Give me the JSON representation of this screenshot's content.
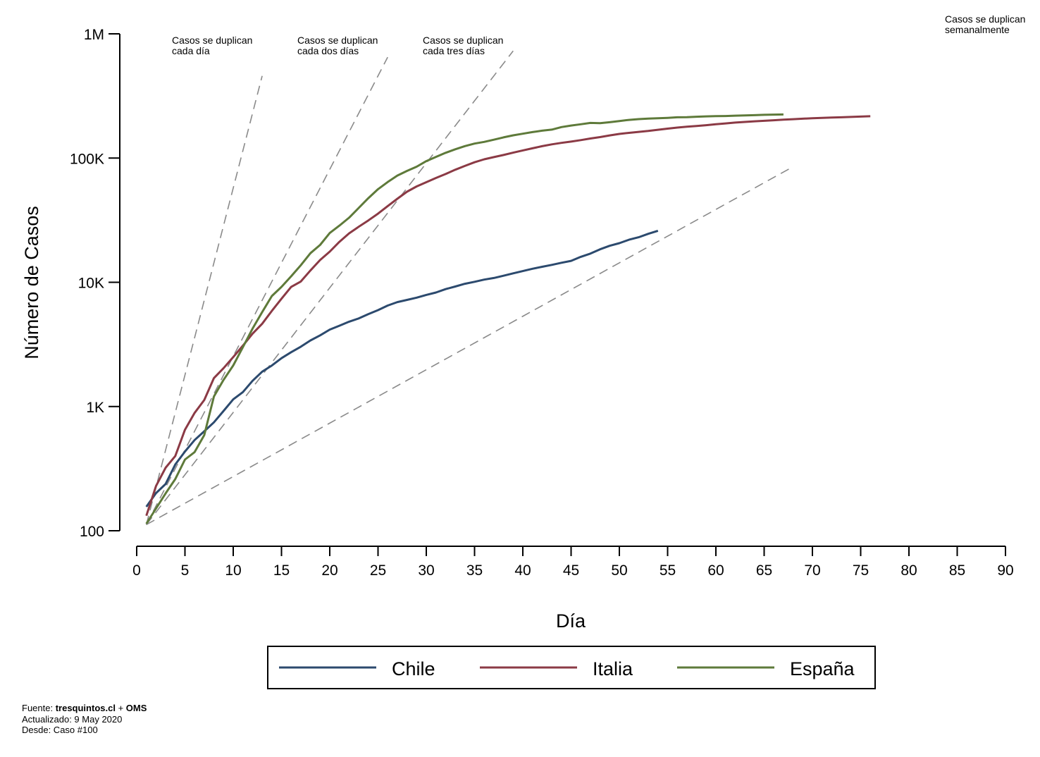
{
  "chart_data": {
    "type": "line",
    "xlabel": "Día",
    "ylabel": "Número de Casos",
    "xlim": [
      0,
      90
    ],
    "ylim": [
      100,
      1000000
    ],
    "yscale": "log",
    "grid": false,
    "legend_position": "bottom",
    "x_ticks": [
      0,
      5,
      10,
      15,
      20,
      25,
      30,
      35,
      40,
      45,
      50,
      55,
      60,
      65,
      70,
      75,
      80,
      85,
      90
    ],
    "y_ticks": [
      {
        "value": 100,
        "label": "100"
      },
      {
        "value": 1000,
        "label": "1K"
      },
      {
        "value": 10000,
        "label": "10K"
      },
      {
        "value": 100000,
        "label": "100K"
      },
      {
        "value": 1000000,
        "label": "1M"
      }
    ],
    "series": [
      {
        "name": "Chile",
        "color": "#2c4a6e",
        "points": [
          [
            1,
            156
          ],
          [
            2,
            201
          ],
          [
            3,
            238
          ],
          [
            4,
            342
          ],
          [
            5,
            434
          ],
          [
            6,
            537
          ],
          [
            7,
            632
          ],
          [
            8,
            746
          ],
          [
            9,
            922
          ],
          [
            10,
            1142
          ],
          [
            11,
            1306
          ],
          [
            12,
            1610
          ],
          [
            13,
            1909
          ],
          [
            14,
            2139
          ],
          [
            15,
            2449
          ],
          [
            16,
            2738
          ],
          [
            17,
            3031
          ],
          [
            18,
            3404
          ],
          [
            19,
            3737
          ],
          [
            20,
            4161
          ],
          [
            21,
            4471
          ],
          [
            22,
            4815
          ],
          [
            23,
            5116
          ],
          [
            24,
            5546
          ],
          [
            25,
            5972
          ],
          [
            26,
            6501
          ],
          [
            27,
            6927
          ],
          [
            28,
            7213
          ],
          [
            29,
            7525
          ],
          [
            30,
            7917
          ],
          [
            31,
            8273
          ],
          [
            32,
            8807
          ],
          [
            33,
            9252
          ],
          [
            34,
            9730
          ],
          [
            35,
            10088
          ],
          [
            36,
            10507
          ],
          [
            37,
            10832
          ],
          [
            38,
            11296
          ],
          [
            39,
            11812
          ],
          [
            40,
            12306
          ],
          [
            41,
            12858
          ],
          [
            42,
            13331
          ],
          [
            43,
            13813
          ],
          [
            44,
            14365
          ],
          [
            45,
            14885
          ],
          [
            46,
            16023
          ],
          [
            47,
            17008
          ],
          [
            48,
            18435
          ],
          [
            49,
            19663
          ],
          [
            50,
            20643
          ],
          [
            51,
            22016
          ],
          [
            52,
            23048
          ],
          [
            53,
            24581
          ],
          [
            54,
            25972
          ]
        ]
      },
      {
        "name": "Italia",
        "color": "#8b3a45",
        "points": [
          [
            1,
            132
          ],
          [
            2,
            229
          ],
          [
            3,
            322
          ],
          [
            4,
            400
          ],
          [
            5,
            650
          ],
          [
            6,
            888
          ],
          [
            7,
            1128
          ],
          [
            8,
            1694
          ],
          [
            9,
            2036
          ],
          [
            10,
            2502
          ],
          [
            11,
            3089
          ],
          [
            12,
            3858
          ],
          [
            13,
            4636
          ],
          [
            14,
            5883
          ],
          [
            15,
            7375
          ],
          [
            16,
            9172
          ],
          [
            17,
            10149
          ],
          [
            18,
            12462
          ],
          [
            19,
            15113
          ],
          [
            20,
            17660
          ],
          [
            21,
            21157
          ],
          [
            22,
            24747
          ],
          [
            23,
            27980
          ],
          [
            24,
            31506
          ],
          [
            25,
            35713
          ],
          [
            26,
            41035
          ],
          [
            27,
            47021
          ],
          [
            28,
            53578
          ],
          [
            29,
            59138
          ],
          [
            30,
            63927
          ],
          [
            31,
            69176
          ],
          [
            32,
            74386
          ],
          [
            33,
            80589
          ],
          [
            34,
            86498
          ],
          [
            35,
            92472
          ],
          [
            36,
            97689
          ],
          [
            37,
            101739
          ],
          [
            38,
            105792
          ],
          [
            39,
            110574
          ],
          [
            40,
            115242
          ],
          [
            41,
            119827
          ],
          [
            42,
            124632
          ],
          [
            43,
            128948
          ],
          [
            44,
            132547
          ],
          [
            45,
            135586
          ],
          [
            46,
            139422
          ],
          [
            47,
            143626
          ],
          [
            48,
            147577
          ],
          [
            49,
            152271
          ],
          [
            50,
            156363
          ],
          [
            51,
            159516
          ],
          [
            52,
            162488
          ],
          [
            53,
            165155
          ],
          [
            54,
            168941
          ],
          [
            55,
            172434
          ],
          [
            56,
            175925
          ],
          [
            57,
            178972
          ],
          [
            58,
            181228
          ],
          [
            59,
            183957
          ],
          [
            60,
            187327
          ],
          [
            61,
            189973
          ],
          [
            62,
            192994
          ],
          [
            63,
            195351
          ],
          [
            64,
            197675
          ],
          [
            65,
            199414
          ],
          [
            66,
            201505
          ],
          [
            67,
            203591
          ],
          [
            68,
            205463
          ],
          [
            69,
            207428
          ],
          [
            70,
            209328
          ],
          [
            71,
            210717
          ],
          [
            72,
            211938
          ],
          [
            73,
            213013
          ],
          [
            74,
            214457
          ],
          [
            75,
            215858
          ],
          [
            76,
            217185
          ]
        ]
      },
      {
        "name": "España",
        "color": "#5e7a3a",
        "points": [
          [
            1,
            114
          ],
          [
            2,
            151
          ],
          [
            3,
            200
          ],
          [
            4,
            261
          ],
          [
            5,
            374
          ],
          [
            6,
            430
          ],
          [
            7,
            589
          ],
          [
            8,
            1204
          ],
          [
            9,
            1639
          ],
          [
            10,
            2140
          ],
          [
            11,
            3004
          ],
          [
            12,
            4231
          ],
          [
            13,
            5753
          ],
          [
            14,
            7753
          ],
          [
            15,
            9191
          ],
          [
            16,
            11178
          ],
          [
            17,
            13716
          ],
          [
            18,
            17147
          ],
          [
            19,
            19980
          ],
          [
            20,
            24926
          ],
          [
            21,
            28572
          ],
          [
            22,
            33089
          ],
          [
            23,
            39673
          ],
          [
            24,
            47610
          ],
          [
            25,
            56188
          ],
          [
            26,
            64059
          ],
          [
            27,
            72248
          ],
          [
            28,
            78797
          ],
          [
            29,
            85195
          ],
          [
            30,
            94417
          ],
          [
            31,
            102136
          ],
          [
            32,
            110238
          ],
          [
            33,
            117710
          ],
          [
            34,
            124736
          ],
          [
            35,
            130759
          ],
          [
            36,
            135032
          ],
          [
            37,
            140510
          ],
          [
            38,
            146690
          ],
          [
            39,
            152446
          ],
          [
            40,
            157022
          ],
          [
            41,
            161852
          ],
          [
            42,
            166019
          ],
          [
            43,
            169496
          ],
          [
            44,
            177633
          ],
          [
            45,
            182816
          ],
          [
            46,
            187093
          ],
          [
            47,
            191726
          ],
          [
            48,
            190839
          ],
          [
            49,
            194416
          ],
          [
            50,
            198674
          ],
          [
            51,
            202990
          ],
          [
            52,
            205905
          ],
          [
            53,
            207634
          ],
          [
            54,
            209465
          ],
          [
            55,
            210773
          ],
          [
            56,
            212917
          ],
          [
            57,
            213435
          ],
          [
            58,
            215216
          ],
          [
            59,
            216582
          ],
          [
            60,
            217466
          ],
          [
            61,
            218011
          ],
          [
            62,
            219329
          ],
          [
            63,
            220325
          ],
          [
            64,
            221447
          ],
          [
            65,
            222857
          ],
          [
            66,
            223759
          ],
          [
            67,
            224350
          ]
        ]
      }
    ],
    "reference_lines": [
      {
        "label_lines": [
          "Casos se duplican",
          "cada día"
        ],
        "doubling_days": 1,
        "x_end": 13
      },
      {
        "label_lines": [
          "Casos se duplican",
          "cada dos días"
        ],
        "doubling_days": 2,
        "x_end": 26
      },
      {
        "label_lines": [
          "Casos se duplican",
          "cada tres días"
        ],
        "doubling_days": 3,
        "x_end": 39
      },
      {
        "label_lines": [
          "Casos se duplican",
          "semanalmente"
        ],
        "doubling_days": 7,
        "x_end": 68
      }
    ],
    "reference_color": "#8a8a8a"
  },
  "footer": {
    "source_prefix": "Fuente: ",
    "source_site": "tresquintos.cl",
    "source_join": " + ",
    "source_org": "OMS",
    "updated": "Actualizado: 9 May 2020",
    "since": "Desde: Caso #100"
  }
}
